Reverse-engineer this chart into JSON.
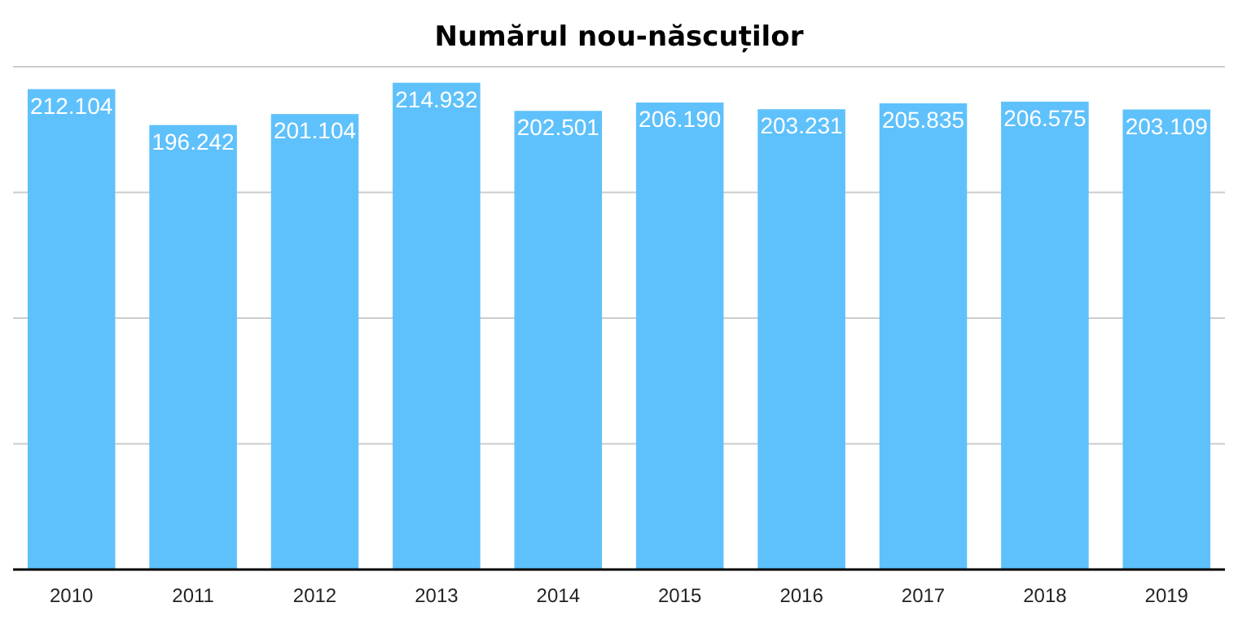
{
  "chart_data": {
    "type": "bar",
    "title": "Numărul nou-născuților",
    "categories": [
      "2010",
      "2011",
      "2012",
      "2013",
      "2014",
      "2015",
      "2016",
      "2017",
      "2018",
      "2019"
    ],
    "values": [
      212104,
      196242,
      201104,
      214932,
      202501,
      206190,
      203231,
      205835,
      206575,
      203109
    ],
    "value_labels": [
      "212.104",
      "196.242",
      "201.104",
      "214.932",
      "202.501",
      "206.190",
      "203.231",
      "205.835",
      "206.575",
      "203.109"
    ],
    "color": "#5fc1fb",
    "ylim": [
      0,
      222000
    ],
    "yticks": [
      {
        "value": 0,
        "label": null
      },
      {
        "value": 55500,
        "label": null
      },
      {
        "value": 111000,
        "label": null
      },
      {
        "value": 166500,
        "label": null
      },
      {
        "value": 222000,
        "label": null
      }
    ],
    "grid": "y",
    "tick_labels": "x"
  }
}
